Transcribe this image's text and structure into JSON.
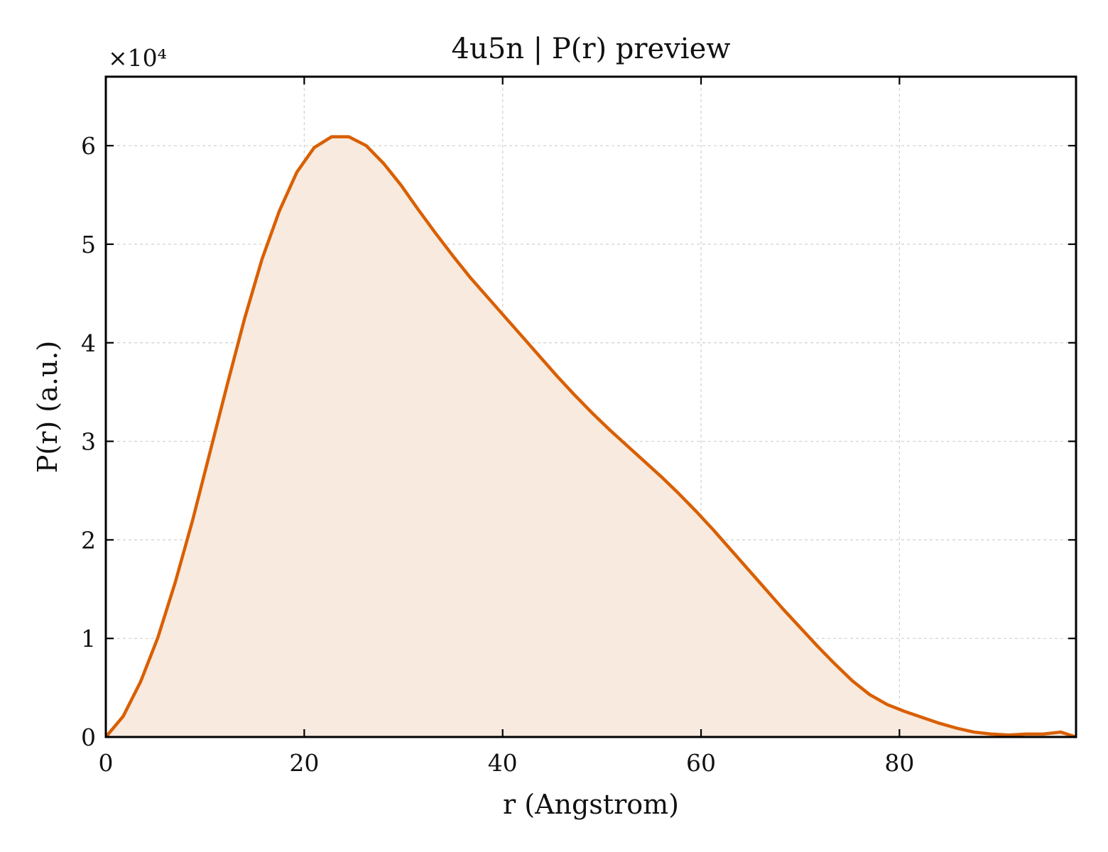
{
  "chart_data": {
    "type": "area",
    "title": "4u5n | P(r) preview",
    "xlabel": "r (Angstrom)",
    "ylabel": "P(r) (a.u.)",
    "y_multiplier_label": "×10⁴",
    "y_multiplier": 10000,
    "xlim": [
      0,
      97.8
    ],
    "ylim": [
      0,
      67000
    ],
    "x_ticks": [
      0,
      20,
      40,
      60,
      80
    ],
    "y_ticks": [
      0,
      1,
      2,
      3,
      4,
      5,
      6
    ],
    "grid": true,
    "line_color": "#d95f02",
    "fill_color": "#f8eade",
    "series": [
      {
        "x": [
          0,
          1.75,
          3.5,
          5.25,
          7.0,
          8.75,
          10.5,
          12.25,
          14.0,
          15.75,
          17.5,
          19.25,
          21.0,
          22.75,
          24.5,
          26.25,
          28.0,
          29.75,
          31.5,
          33.25,
          35.0,
          36.75,
          38.5,
          40.25,
          42.0,
          43.75,
          45.5,
          47.25,
          49.0,
          50.75,
          52.5,
          54.25,
          56.0,
          57.75,
          59.5,
          61.25,
          63.0,
          64.75,
          66.5,
          68.25,
          70.0,
          71.75,
          73.5,
          75.25,
          77.0,
          78.75,
          80.5,
          82.25,
          84.0,
          85.75,
          87.5,
          89.25,
          91.0,
          92.75,
          94.5,
          96.25,
          97.8
        ],
        "values": [
          0,
          2100,
          5600,
          10100,
          15700,
          22000,
          28900,
          35800,
          42500,
          48500,
          53400,
          57300,
          59800,
          60900,
          60900,
          60000,
          58200,
          56000,
          53500,
          51100,
          48800,
          46600,
          44600,
          42600,
          40600,
          38600,
          36600,
          34700,
          32900,
          31200,
          29600,
          28000,
          26400,
          24700,
          22900,
          21000,
          19000,
          17000,
          15000,
          13000,
          11100,
          9200,
          7400,
          5700,
          4300,
          3300,
          2600,
          2000,
          1400,
          900,
          500,
          300,
          200,
          300,
          300,
          500,
          0
        ]
      }
    ]
  }
}
